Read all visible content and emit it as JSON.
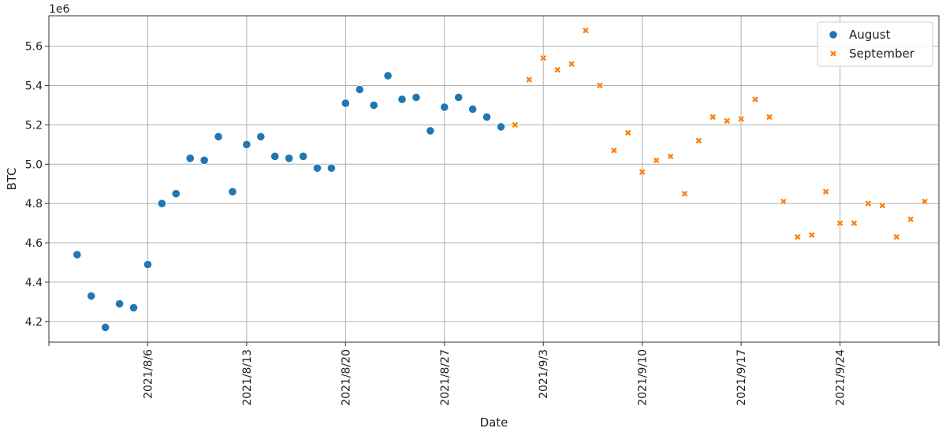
{
  "chart_data": {
    "type": "scatter",
    "xlabel": "Date",
    "ylabel": "BTC",
    "y_offset_label": "1e6",
    "grid": true,
    "legend_position": "top-right",
    "x_range": [
      "2021-07-30",
      "2021-10-01"
    ],
    "y_range": [
      4.095,
      5.755
    ],
    "x_ticks": [
      "2021-07-30",
      "2021-08-06",
      "2021-08-13",
      "2021-08-20",
      "2021-08-27",
      "2021-09-03",
      "2021-09-10",
      "2021-09-17",
      "2021-09-24",
      "2021-10-01"
    ],
    "x_tick_labels": [
      "",
      "2021/8/6",
      "2021/8/13",
      "2021/8/20",
      "2021/8/27",
      "2021/9/3",
      "2021/9/10",
      "2021/9/17",
      "2021/9/24",
      ""
    ],
    "y_ticks": [
      4.2,
      4.4,
      4.6,
      4.8,
      5.0,
      5.2,
      5.4,
      5.6
    ],
    "y_tick_labels": [
      "4.2",
      "4.4",
      "4.6",
      "4.8",
      "5.0",
      "5.2",
      "5.4",
      "5.6"
    ],
    "series": [
      {
        "name": "August",
        "marker": "circle",
        "color": "#1f77b4",
        "points": [
          {
            "x": "2021-08-01",
            "y": 4.54
          },
          {
            "x": "2021-08-02",
            "y": 4.33
          },
          {
            "x": "2021-08-03",
            "y": 4.17
          },
          {
            "x": "2021-08-04",
            "y": 4.29
          },
          {
            "x": "2021-08-05",
            "y": 4.27
          },
          {
            "x": "2021-08-06",
            "y": 4.49
          },
          {
            "x": "2021-08-07",
            "y": 4.8
          },
          {
            "x": "2021-08-08",
            "y": 4.85
          },
          {
            "x": "2021-08-09",
            "y": 5.03
          },
          {
            "x": "2021-08-10",
            "y": 5.02
          },
          {
            "x": "2021-08-11",
            "y": 5.14
          },
          {
            "x": "2021-08-12",
            "y": 4.86
          },
          {
            "x": "2021-08-13",
            "y": 5.1
          },
          {
            "x": "2021-08-14",
            "y": 5.14
          },
          {
            "x": "2021-08-15",
            "y": 5.04
          },
          {
            "x": "2021-08-16",
            "y": 5.03
          },
          {
            "x": "2021-08-17",
            "y": 5.04
          },
          {
            "x": "2021-08-18",
            "y": 4.98
          },
          {
            "x": "2021-08-19",
            "y": 4.98
          },
          {
            "x": "2021-08-20",
            "y": 5.31
          },
          {
            "x": "2021-08-21",
            "y": 5.38
          },
          {
            "x": "2021-08-22",
            "y": 5.3
          },
          {
            "x": "2021-08-23",
            "y": 5.45
          },
          {
            "x": "2021-08-24",
            "y": 5.33
          },
          {
            "x": "2021-08-25",
            "y": 5.34
          },
          {
            "x": "2021-08-26",
            "y": 5.17
          },
          {
            "x": "2021-08-27",
            "y": 5.29
          },
          {
            "x": "2021-08-28",
            "y": 5.34
          },
          {
            "x": "2021-08-29",
            "y": 5.28
          },
          {
            "x": "2021-08-30",
            "y": 5.24
          },
          {
            "x": "2021-08-31",
            "y": 5.19
          }
        ]
      },
      {
        "name": "September",
        "marker": "x",
        "color": "#ff7f0e",
        "points": [
          {
            "x": "2021-09-01",
            "y": 5.2
          },
          {
            "x": "2021-09-02",
            "y": 5.43
          },
          {
            "x": "2021-09-03",
            "y": 5.54
          },
          {
            "x": "2021-09-04",
            "y": 5.48
          },
          {
            "x": "2021-09-05",
            "y": 5.51
          },
          {
            "x": "2021-09-06",
            "y": 5.68
          },
          {
            "x": "2021-09-07",
            "y": 5.4
          },
          {
            "x": "2021-09-08",
            "y": 5.07
          },
          {
            "x": "2021-09-09",
            "y": 5.16
          },
          {
            "x": "2021-09-10",
            "y": 4.96
          },
          {
            "x": "2021-09-11",
            "y": 5.02
          },
          {
            "x": "2021-09-12",
            "y": 5.04
          },
          {
            "x": "2021-09-13",
            "y": 4.85
          },
          {
            "x": "2021-09-14",
            "y": 5.12
          },
          {
            "x": "2021-09-15",
            "y": 5.24
          },
          {
            "x": "2021-09-16",
            "y": 5.22
          },
          {
            "x": "2021-09-17",
            "y": 5.23
          },
          {
            "x": "2021-09-18",
            "y": 5.33
          },
          {
            "x": "2021-09-19",
            "y": 5.24
          },
          {
            "x": "2021-09-20",
            "y": 4.81
          },
          {
            "x": "2021-09-21",
            "y": 4.63
          },
          {
            "x": "2021-09-22",
            "y": 4.64
          },
          {
            "x": "2021-09-23",
            "y": 4.86
          },
          {
            "x": "2021-09-24",
            "y": 4.7
          },
          {
            "x": "2021-09-25",
            "y": 4.7
          },
          {
            "x": "2021-09-26",
            "y": 4.8
          },
          {
            "x": "2021-09-27",
            "y": 4.79
          },
          {
            "x": "2021-09-28",
            "y": 4.63
          },
          {
            "x": "2021-09-29",
            "y": 4.72
          },
          {
            "x": "2021-09-30",
            "y": 4.81
          }
        ]
      }
    ]
  }
}
